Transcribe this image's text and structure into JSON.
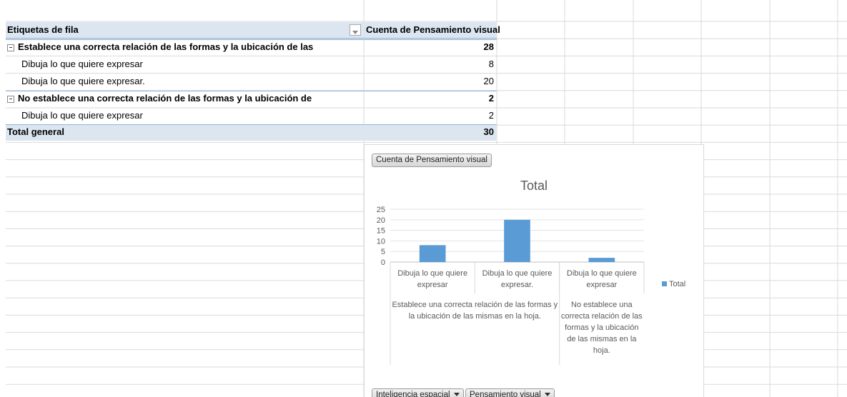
{
  "sheet": {
    "header": {
      "row_label": "Etiquetas de fila",
      "value_label": "Cuenta de Pensamiento visual"
    },
    "rows": [
      {
        "label": "Establece una correcta relación de las formas y la ubicación de las",
        "value": 28,
        "level": 0
      },
      {
        "label": "Dibuja lo que quiere expresar",
        "value": 8,
        "level": 1
      },
      {
        "label": "Dibuja lo que quiere expresar.",
        "value": 20,
        "level": 1
      },
      {
        "label": "No establece una correcta relación de las formas y la ubicación de",
        "value": 2,
        "level": 0
      },
      {
        "label": "Dibuja lo que quiere expresar",
        "value": 2,
        "level": 1
      }
    ],
    "total": {
      "label": "Total general",
      "value": 30
    }
  },
  "chart_data": {
    "type": "bar",
    "title": "Total",
    "field_button": "Cuenta de Pensamiento visual",
    "categories": [
      "Dibuja lo que quiere expresar",
      "Dibuja lo que quiere expresar.",
      "Dibuja lo que quiere expresar"
    ],
    "groups": [
      {
        "label": "Establece una correcta relación de las formas y la ubicación de las mismas en la hoja.",
        "span": 2
      },
      {
        "label": "No establece una correcta relación de las formas y la ubicación de las mismas en la hoja.",
        "span": 1
      }
    ],
    "series": [
      {
        "name": "Total",
        "color": "#5b9bd5",
        "values": [
          8,
          20,
          2
        ]
      }
    ],
    "ylim": [
      0,
      25
    ],
    "yticks": [
      0,
      5,
      10,
      15,
      20,
      25
    ],
    "grid": true,
    "axis_buttons": [
      "Inteligencia espacial",
      "Pensamiento visual"
    ]
  }
}
